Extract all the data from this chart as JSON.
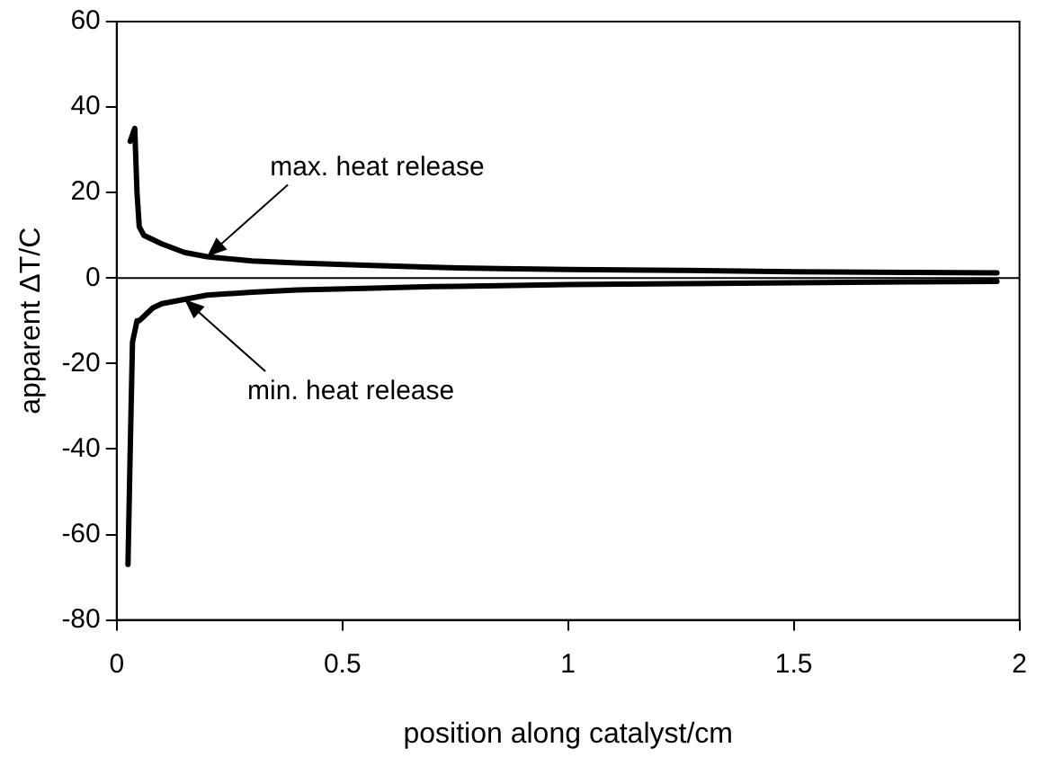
{
  "chart_data": {
    "type": "line",
    "xlabel": "position along catalyst/cm",
    "ylabel": "apparent ΔT/C",
    "xlim": [
      0,
      2
    ],
    "xticks": [
      0,
      0.5,
      1,
      1.5,
      2
    ],
    "ylim": [
      -80,
      60
    ],
    "yticks": [
      -80,
      -60,
      -40,
      -20,
      0,
      20,
      40,
      60
    ],
    "series": [
      {
        "color": "#000000",
        "x": [
          0.03,
          0.04,
          0.045,
          0.05,
          0.06,
          0.08,
          0.1,
          0.15,
          0.2,
          0.3,
          0.4,
          0.55,
          0.7,
          0.85,
          1,
          1.25,
          1.5,
          1.75,
          1.95
        ],
        "values": [
          32,
          35,
          20,
          12,
          10,
          9,
          8,
          6,
          5,
          4,
          3.5,
          3,
          2.5,
          2.2,
          2,
          1.8,
          1.5,
          1.3,
          1.2
        ]
      },
      {
        "color": "#000000",
        "x": [
          0.025,
          0.03,
          0.035,
          0.045,
          0.05,
          0.06,
          0.08,
          0.1,
          0.15,
          0.2,
          0.3,
          0.4,
          0.55,
          0.7,
          0.85,
          1,
          1.25,
          1.5,
          1.75,
          1.95
        ],
        "values": [
          -67,
          -40,
          -15,
          -10,
          -10,
          -9,
          -7,
          -6,
          -5,
          -4,
          -3.3,
          -2.8,
          -2.4,
          -2,
          -1.8,
          -1.5,
          -1.3,
          -1.1,
          -0.9,
          -0.8
        ]
      }
    ],
    "ref_lines": [
      {
        "axis": "y",
        "value": 0,
        "color": "#000000"
      }
    ],
    "annotations": [
      {
        "text": "max. heat release",
        "x": 0.2,
        "y": 5
      },
      {
        "text": "min. heat release",
        "x": 0.15,
        "y": -5
      }
    ],
    "marker": "none",
    "line_style": "solid",
    "grid": false,
    "legend": false
  }
}
